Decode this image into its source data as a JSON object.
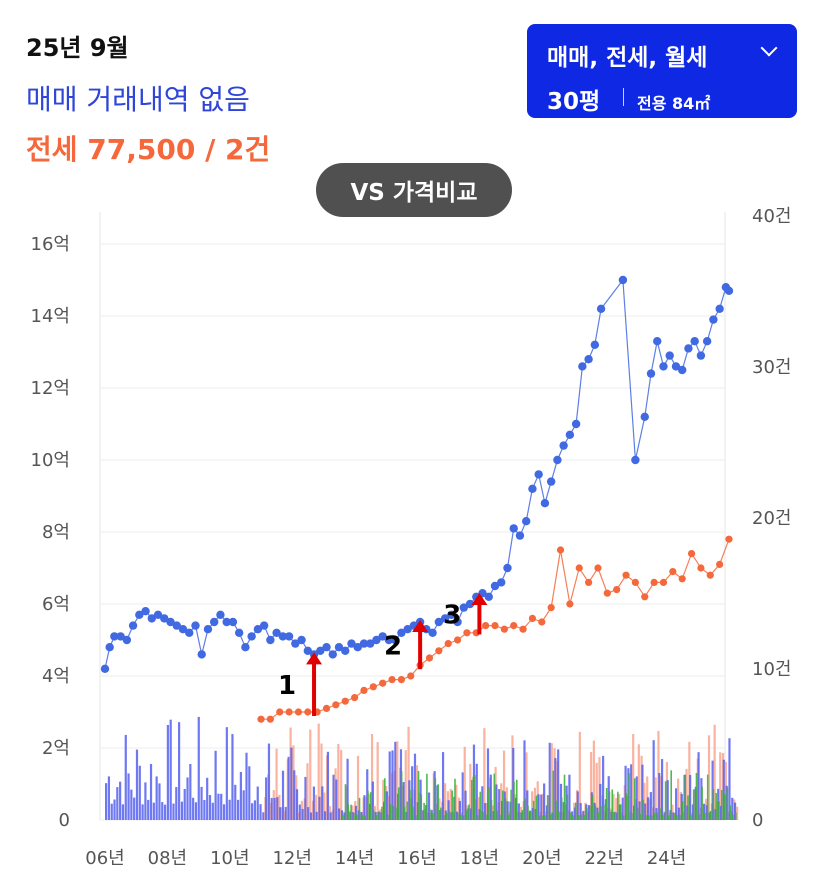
{
  "header": {
    "month": "25년 9월",
    "sale_status": "매매 거래내역 없음",
    "jeonse_summary": "전세 77,500 / 2건"
  },
  "filter": {
    "types": "매매, 전세, 월세",
    "size": "30평",
    "area": "전용 84㎡"
  },
  "compare_button": "VS 가격비교",
  "colors": {
    "sale": "#4169e1",
    "jeonse": "#f4683c",
    "volume_sale": "#5560f0",
    "volume_jeonse": "#f7a088",
    "volume_rent": "#3fb03f",
    "arrow": "#e00000",
    "button": "#0f28e3"
  },
  "chart_data": {
    "type": "line",
    "x_ticks": [
      "06년",
      "08년",
      "10년",
      "12년",
      "14년",
      "16년",
      "18년",
      "20년",
      "22년",
      "24년"
    ],
    "y_left_ticks": [
      "0",
      "2억",
      "4억",
      "6억",
      "8억",
      "10억",
      "12억",
      "14억",
      "16억"
    ],
    "y_right_ticks": [
      "0",
      "10건",
      "20건",
      "30건",
      "40건"
    ],
    "ylim_left": [
      0,
      16
    ],
    "ylim_right": [
      0,
      40
    ],
    "xlim": [
      2006,
      2026.3
    ],
    "grid": true,
    "series": [
      {
        "key": "sale",
        "x": [
          2006.0,
          2006.15,
          2006.3,
          2006.5,
          2006.7,
          2006.9,
          2007.1,
          2007.3,
          2007.5,
          2007.7,
          2007.9,
          2008.1,
          2008.3,
          2008.5,
          2008.7,
          2008.9,
          2009.1,
          2009.3,
          2009.5,
          2009.7,
          2009.9,
          2010.1,
          2010.3,
          2010.5,
          2010.7,
          2010.9,
          2011.1,
          2011.3,
          2011.5,
          2011.7,
          2011.9,
          2012.1,
          2012.3,
          2012.5,
          2012.7,
          2012.9,
          2013.1,
          2013.3,
          2013.5,
          2013.7,
          2013.9,
          2014.1,
          2014.3,
          2014.5,
          2014.7,
          2014.9,
          2015.1,
          2015.3,
          2015.5,
          2015.7,
          2015.9,
          2016.1,
          2016.3,
          2016.5,
          2016.7,
          2016.9,
          2017.1,
          2017.3,
          2017.5,
          2017.7,
          2017.9,
          2018.1,
          2018.3,
          2018.5,
          2018.7,
          2018.9,
          2019.1,
          2019.3,
          2019.5,
          2019.7,
          2019.9,
          2020.1,
          2020.3,
          2020.5,
          2020.7,
          2020.9,
          2021.1,
          2021.3,
          2021.5,
          2021.7,
          2021.9,
          2022.6,
          2023.0,
          2023.3,
          2023.5,
          2023.7,
          2023.9,
          2024.1,
          2024.3,
          2024.5,
          2024.7,
          2024.9,
          2025.1,
          2025.3,
          2025.5,
          2025.7,
          2025.9,
          2026.0
        ],
        "values": [
          4.2,
          4.8,
          5.1,
          5.1,
          5.0,
          5.4,
          5.7,
          5.8,
          5.6,
          5.7,
          5.6,
          5.5,
          5.4,
          5.3,
          5.2,
          5.4,
          4.6,
          5.3,
          5.5,
          5.7,
          5.5,
          5.5,
          5.2,
          4.8,
          5.1,
          5.3,
          5.4,
          5.0,
          5.2,
          5.1,
          5.1,
          4.9,
          5.0,
          4.7,
          4.6,
          4.7,
          4.8,
          4.6,
          4.8,
          4.7,
          4.9,
          4.8,
          4.9,
          4.9,
          5.0,
          5.1,
          5.0,
          5.0,
          5.2,
          5.3,
          5.4,
          5.5,
          5.3,
          5.2,
          5.5,
          5.6,
          5.7,
          5.5,
          5.9,
          6.0,
          6.2,
          6.3,
          6.2,
          6.5,
          6.6,
          7.0,
          8.1,
          7.9,
          8.3,
          9.2,
          9.6,
          8.8,
          9.4,
          10.0,
          10.4,
          10.7,
          11.0,
          12.6,
          12.8,
          13.2,
          14.2,
          15.0,
          10.0,
          11.2,
          12.4,
          13.3,
          12.6,
          12.9,
          12.6,
          12.5,
          13.1,
          13.3,
          12.9,
          13.3,
          13.9,
          14.2,
          14.8,
          14.7
        ]
      },
      {
        "key": "jeonse",
        "x": [
          2011.0,
          2011.3,
          2011.6,
          2011.9,
          2012.2,
          2012.5,
          2012.8,
          2013.1,
          2013.4,
          2013.7,
          2014.0,
          2014.3,
          2014.6,
          2014.9,
          2015.2,
          2015.5,
          2015.8,
          2016.1,
          2016.4,
          2016.7,
          2017.0,
          2017.3,
          2017.6,
          2017.9,
          2018.2,
          2018.5,
          2018.8,
          2019.1,
          2019.4,
          2019.7,
          2020.0,
          2020.3,
          2020.6,
          2020.9,
          2021.2,
          2021.5,
          2021.8,
          2022.1,
          2022.4,
          2022.7,
          2023.0,
          2023.3,
          2023.6,
          2023.9,
          2024.2,
          2024.5,
          2024.8,
          2025.1,
          2025.4,
          2025.7,
          2026.0
        ],
        "values": [
          2.8,
          2.8,
          3.0,
          3.0,
          3.0,
          3.0,
          3.0,
          3.1,
          3.2,
          3.3,
          3.4,
          3.6,
          3.7,
          3.8,
          3.9,
          3.9,
          4.0,
          4.3,
          4.5,
          4.7,
          4.9,
          5.0,
          5.2,
          5.2,
          5.4,
          5.4,
          5.3,
          5.4,
          5.3,
          5.6,
          5.5,
          5.9,
          7.5,
          6.0,
          7.0,
          6.6,
          7.0,
          6.3,
          6.4,
          6.8,
          6.6,
          6.2,
          6.6,
          6.6,
          6.9,
          6.7,
          7.4,
          7.0,
          6.8,
          7.1,
          7.8
        ]
      }
    ],
    "annotations": [
      {
        "label": "1",
        "x": 2012.7
      },
      {
        "label": "2",
        "x": 2016.1
      },
      {
        "label": "3",
        "x": 2018.0
      }
    ]
  }
}
